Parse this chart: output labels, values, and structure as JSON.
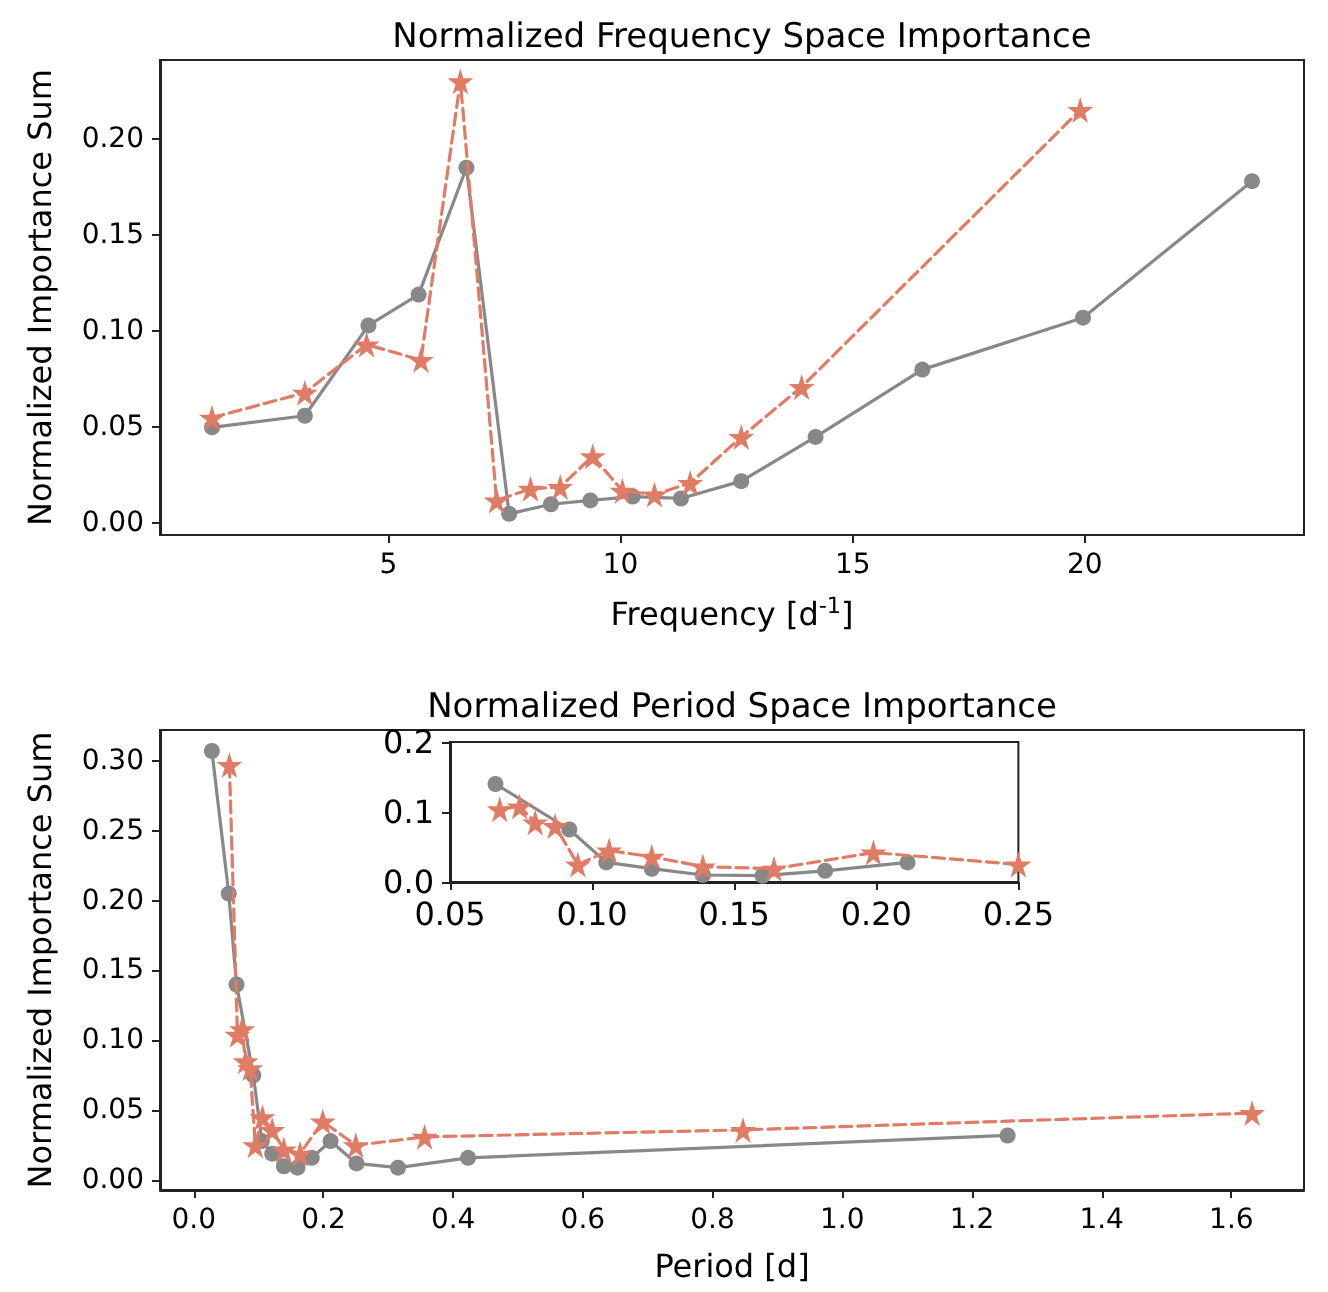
{
  "chart_data": [
    {
      "type": "line",
      "title": "Normalized Frequency Space Importance",
      "xlabel": "Frequency [d$^{-1}$]",
      "ylabel": "Normalized Importance Sum",
      "xlim": [
        0.08,
        24.72
      ],
      "ylim": [
        -0.006,
        0.241
      ],
      "xticks": [
        5,
        10,
        15,
        20
      ],
      "yticks": [
        {
          "value": 0,
          "label": "0.00"
        },
        {
          "value": 0.05,
          "label": "0.05"
        },
        {
          "value": 0.1,
          "label": "0.10"
        },
        {
          "value": 0.15,
          "label": "0.15"
        },
        {
          "value": 0.2,
          "label": "0.20"
        }
      ],
      "grid": false,
      "series": [
        {
          "color": "#888888",
          "marker": "circle",
          "line_style": "solid",
          "x": [
            1.2,
            3.2,
            4.57,
            5.65,
            6.68,
            7.6,
            8.5,
            9.35,
            10.26,
            11.3,
            12.6,
            14.2,
            16.5,
            19.96,
            23.6
          ],
          "values": [
            0.05,
            0.056,
            0.103,
            0.119,
            0.185,
            0.005,
            0.01,
            0.012,
            0.014,
            0.013,
            0.022,
            0.045,
            0.08,
            0.107,
            0.178
          ]
        },
        {
          "color": "#e07b65",
          "marker": "star",
          "line_style": "dashed",
          "x": [
            1.2,
            3.2,
            4.53,
            5.7,
            6.55,
            7.33,
            8.06,
            8.7,
            9.4,
            10.04,
            10.73,
            11.5,
            12.6,
            13.9,
            19.9
          ],
          "values": [
            0.055,
            0.068,
            0.093,
            0.085,
            0.23,
            0.012,
            0.018,
            0.019,
            0.035,
            0.017,
            0.015,
            0.021,
            0.045,
            0.071,
            0.215
          ]
        }
      ]
    },
    {
      "type": "line",
      "title": "Normalized Period Space Importance",
      "xlabel": "Period [d]",
      "ylabel": "Normalized Importance Sum",
      "xlim": [
        -0.052,
        1.712
      ],
      "ylim": [
        -0.007,
        0.322
      ],
      "xticks": [
        {
          "value": 0,
          "label": "0.0"
        },
        {
          "value": 0.2,
          "label": "0.2"
        },
        {
          "value": 0.4,
          "label": "0.4"
        },
        {
          "value": 0.6,
          "label": "0.6"
        },
        {
          "value": 0.8,
          "label": "0.8"
        },
        {
          "value": 1,
          "label": "1.0"
        },
        {
          "value": 1.2,
          "label": "1.2"
        },
        {
          "value": 1.4,
          "label": "1.4"
        },
        {
          "value": 1.6,
          "label": "1.6"
        }
      ],
      "yticks": [
        {
          "value": 0,
          "label": "0.00"
        },
        {
          "value": 0.05,
          "label": "0.05"
        },
        {
          "value": 0.1,
          "label": "0.10"
        },
        {
          "value": 0.15,
          "label": "0.15"
        },
        {
          "value": 0.2,
          "label": "0.20"
        },
        {
          "value": 0.25,
          "label": "0.25"
        },
        {
          "value": 0.3,
          "label": "0.30"
        }
      ],
      "grid": false,
      "series": [
        {
          "color": "#888888",
          "marker": "circle",
          "line_style": "solid",
          "x": [
            0.028,
            0.054,
            0.066,
            0.092,
            0.105,
            0.121,
            0.139,
            0.16,
            0.182,
            0.211,
            0.251,
            0.315,
            0.423,
            1.255
          ],
          "values": [
            0.307,
            0.205,
            0.14,
            0.075,
            0.028,
            0.019,
            0.01,
            0.009,
            0.016,
            0.028,
            0.012,
            0.009,
            0.016,
            0.032
          ]
        },
        {
          "color": "#e07b65",
          "marker": "star",
          "line_style": "dashed",
          "x": [
            0.055,
            0.0675,
            0.0745,
            0.08,
            0.087,
            0.095,
            0.106,
            0.121,
            0.139,
            0.164,
            0.199,
            0.25,
            0.356,
            0.847,
            1.632
          ],
          "values": [
            0.297,
            0.104,
            0.108,
            0.085,
            0.08,
            0.025,
            0.045,
            0.036,
            0.022,
            0.019,
            0.042,
            0.025,
            0.031,
            0.036,
            0.048
          ]
        }
      ]
    },
    {
      "type": "line",
      "xlim": [
        0.05,
        0.25
      ],
      "ylim": [
        0,
        0.2
      ],
      "xticks": [
        {
          "value": 0.05,
          "label": "0.05"
        },
        {
          "value": 0.1,
          "label": "0.10"
        },
        {
          "value": 0.15,
          "label": "0.15"
        },
        {
          "value": 0.2,
          "label": "0.20"
        },
        {
          "value": 0.25,
          "label": "0.25"
        }
      ],
      "yticks": [
        {
          "value": 0,
          "label": "0.0"
        },
        {
          "value": 0.1,
          "label": "0.1"
        },
        {
          "value": 0.2,
          "label": "0.2"
        }
      ],
      "grid": false,
      "series": [
        {
          "color": "#888888",
          "marker": "circle",
          "line_style": "solid",
          "x": [
            0.066,
            0.092,
            0.105,
            0.121,
            0.139,
            0.16,
            0.182,
            0.211
          ],
          "values": [
            0.14,
            0.075,
            0.028,
            0.019,
            0.01,
            0.009,
            0.016,
            0.028
          ]
        },
        {
          "color": "#e07b65",
          "marker": "star",
          "line_style": "dashed",
          "x": [
            0.0675,
            0.0745,
            0.08,
            0.087,
            0.095,
            0.106,
            0.121,
            0.139,
            0.164,
            0.199,
            0.25
          ],
          "values": [
            0.104,
            0.108,
            0.085,
            0.08,
            0.025,
            0.045,
            0.036,
            0.022,
            0.019,
            0.042,
            0.025
          ]
        }
      ]
    }
  ]
}
